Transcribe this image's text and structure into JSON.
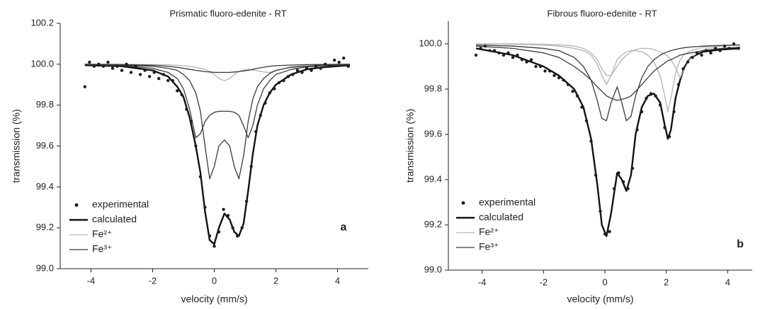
{
  "chart_data": [
    {
      "type": "line",
      "title": "Prismatic fluoro-edenite - RT",
      "xlabel": "velocity (mm/s)",
      "ylabel": "transmission (%)",
      "annotation": "a",
      "xlim": [
        -5,
        5
      ],
      "ylim": [
        99.0,
        100.2
      ],
      "xticks": [
        -4,
        -2,
        0,
        2,
        4
      ],
      "yticks": [
        {
          "value": 99.0,
          "label": "99.0"
        },
        99.2,
        99.4,
        99.6,
        99.8,
        {
          "value": 100.0,
          "label": "100.0"
        },
        100.2
      ],
      "legend": "lower left",
      "series": [
        {
          "name": "experimental",
          "color": "#1e1e1e",
          "mode": "markers",
          "x": [
            -4.2,
            -4.05,
            -3.9,
            -3.75,
            -3.6,
            -3.45,
            -3.3,
            -3.15,
            -3.0,
            -2.85,
            -2.7,
            -2.55,
            -2.4,
            -2.25,
            -2.1,
            -1.95,
            -1.8,
            -1.65,
            -1.5,
            -1.35,
            -1.2,
            -1.05,
            -0.9,
            -0.75,
            -0.6,
            -0.45,
            -0.3,
            -0.15,
            0.0,
            0.15,
            0.3,
            0.45,
            0.6,
            0.75,
            0.9,
            1.05,
            1.2,
            1.35,
            1.5,
            1.65,
            1.8,
            1.95,
            2.1,
            2.25,
            2.4,
            2.55,
            2.7,
            2.85,
            3.0,
            3.15,
            3.3,
            3.45,
            3.6,
            3.75,
            3.9,
            4.05,
            4.2,
            4.35
          ],
          "values": [
            99.89,
            100.01,
            99.99,
            100.0,
            99.99,
            100.01,
            99.98,
            99.99,
            99.97,
            100.0,
            99.96,
            99.99,
            99.95,
            99.97,
            99.94,
            99.96,
            99.93,
            99.95,
            99.92,
            99.92,
            99.87,
            99.85,
            99.78,
            99.72,
            99.6,
            99.45,
            99.3,
            99.16,
            99.11,
            99.18,
            99.29,
            99.26,
            99.2,
            99.16,
            99.2,
            99.33,
            99.5,
            99.67,
            99.75,
            99.81,
            99.86,
            99.88,
            99.91,
            99.92,
            99.94,
            99.95,
            99.97,
            99.96,
            99.98,
            99.97,
            99.99,
            99.98,
            100.0,
            99.99,
            100.02,
            100.01,
            100.03,
            99.99
          ]
        },
        {
          "name": "calculated",
          "color": "#111111",
          "mode": "lines",
          "x": [
            -4.2,
            -3,
            -2,
            -1.5,
            -1.2,
            -1,
            -0.8,
            -0.6,
            -0.45,
            -0.3,
            -0.15,
            0,
            0.15,
            0.33,
            0.5,
            0.65,
            0.8,
            0.95,
            1.1,
            1.25,
            1.4,
            1.6,
            1.8,
            2,
            2.5,
            3,
            3.5,
            4.4
          ],
          "values": [
            99.995,
            99.99,
            99.97,
            99.94,
            99.89,
            99.84,
            99.74,
            99.6,
            99.47,
            99.28,
            99.14,
            99.12,
            99.2,
            99.27,
            99.24,
            99.18,
            99.16,
            99.22,
            99.38,
            99.56,
            99.7,
            99.8,
            99.86,
            99.9,
            99.95,
            99.975,
            99.985,
            99.995
          ]
        },
        {
          "name": "Fe²⁺",
          "color": "#b4b4b4",
          "mode": "lines",
          "x": [
            -4.2,
            -3,
            -2,
            -1.5,
            -1.2,
            -1,
            -0.8,
            -0.6,
            -0.45,
            -0.3,
            -0.15,
            0,
            0.15,
            0.33,
            0.5,
            0.65,
            0.8,
            0.95,
            1.1,
            1.25,
            1.4,
            1.6,
            1.8,
            2,
            2.5,
            3,
            3.5,
            4.4
          ],
          "values": [
            100,
            100,
            99.998,
            99.997,
            99.995,
            99.993,
            99.99,
            99.985,
            99.98,
            99.975,
            99.965,
            99.95,
            99.93,
            99.92,
            99.93,
            99.95,
            99.965,
            99.972,
            99.975,
            99.972,
            99.968,
            99.962,
            99.96,
            99.968,
            99.988,
            99.995,
            99.998,
            100
          ]
        },
        {
          "name": "Fe³⁺",
          "color": "#3a3a3a",
          "mode": "lines",
          "x": [
            -4.2,
            -3,
            -2,
            -1.5,
            -1.2,
            -1,
            -0.8,
            -0.6,
            -0.45,
            -0.3,
            -0.15,
            0,
            0.15,
            0.33,
            0.5,
            0.65,
            0.8,
            0.95,
            1.1,
            1.25,
            1.4,
            1.6,
            1.8,
            2,
            2.5,
            3,
            3.5,
            4.4,
            null,
            -4.2,
            -3,
            -2,
            -1.5,
            -1.2,
            -1,
            -0.8,
            -0.6,
            -0.45,
            -0.3,
            -0.15,
            0,
            0.15,
            0.33,
            0.5,
            0.65,
            0.8,
            0.95,
            1.1,
            1.25,
            1.4,
            1.6,
            1.8,
            2,
            2.5,
            3,
            3.5,
            4.4,
            null,
            -4.2,
            -3,
            -2,
            -1.5,
            -1.2,
            -1,
            -0.8,
            -0.6,
            -0.45,
            -0.3,
            -0.15,
            0,
            0.15,
            0.33,
            0.5,
            0.65,
            0.8,
            0.95,
            1.1,
            1.25,
            1.4,
            1.6,
            1.8,
            2,
            2.5,
            3,
            3.5,
            4.4
          ],
          "values": [
            99.998,
            99.996,
            99.99,
            99.98,
            99.97,
            99.95,
            99.92,
            99.86,
            99.77,
            99.6,
            99.44,
            99.5,
            99.6,
            99.63,
            99.6,
            99.5,
            99.44,
            99.55,
            99.72,
            99.83,
            99.89,
            99.93,
            99.955,
            99.97,
            99.985,
            99.99,
            99.995,
            99.998,
            null,
            99.997,
            99.994,
            99.98,
            99.96,
            99.93,
            99.88,
            99.78,
            99.64,
            99.66,
            99.72,
            99.75,
            99.765,
            99.77,
            99.77,
            99.77,
            99.765,
            99.75,
            99.7,
            99.64,
            99.7,
            99.8,
            99.88,
            99.92,
            99.95,
            99.975,
            99.987,
            99.993,
            99.997,
            null,
            100,
            99.998,
            99.995,
            99.99,
            99.985,
            99.98,
            99.975,
            99.97,
            99.967,
            99.964,
            99.962,
            99.96,
            99.96,
            99.96,
            99.96,
            99.962,
            99.964,
            99.967,
            99.97,
            99.975,
            99.98,
            99.985,
            99.99,
            99.993,
            99.996,
            99.998,
            99.999,
            100
          ]
        }
      ]
    },
    {
      "type": "line",
      "title": "Fibrous fluoro-edenite - RT",
      "xlabel": "velocity (mm/s)",
      "ylabel": "transmission (%)",
      "annotation": "b",
      "xlim": [
        -5.1,
        4.8
      ],
      "ylim": [
        99.0,
        100.1
      ],
      "xticks": [
        -4,
        -2,
        0,
        2,
        4
      ],
      "yticks": [
        {
          "value": 99.0,
          "label": "99.0"
        },
        99.2,
        99.4,
        99.6,
        99.8,
        {
          "value": 100.0,
          "label": "100.0"
        }
      ],
      "legend": "lower left",
      "series": [
        {
          "name": "experimental",
          "color": "#1e1e1e",
          "mode": "markers",
          "x": [
            -4.2,
            -4.05,
            -3.9,
            -3.75,
            -3.6,
            -3.45,
            -3.3,
            -3.15,
            -3.0,
            -2.85,
            -2.7,
            -2.55,
            -2.4,
            -2.25,
            -2.1,
            -1.95,
            -1.8,
            -1.65,
            -1.5,
            -1.35,
            -1.2,
            -1.05,
            -0.9,
            -0.75,
            -0.6,
            -0.45,
            -0.3,
            -0.15,
            0.0,
            0.15,
            0.3,
            0.45,
            0.6,
            0.75,
            0.9,
            1.05,
            1.2,
            1.35,
            1.5,
            1.65,
            1.8,
            1.95,
            2.1,
            2.25,
            2.4,
            2.55,
            2.7,
            2.85,
            3.0,
            3.15,
            3.3,
            3.45,
            3.6,
            3.75,
            3.9,
            4.05,
            4.2,
            4.35
          ],
          "values": [
            99.95,
            99.98,
            99.99,
            99.97,
            99.97,
            99.96,
            99.95,
            99.96,
            99.94,
            99.95,
            99.93,
            99.92,
            99.93,
            99.9,
            99.9,
            99.88,
            99.88,
            99.86,
            99.85,
            99.84,
            99.82,
            99.79,
            99.77,
            99.72,
            99.66,
            99.57,
            99.42,
            99.26,
            99.16,
            99.17,
            99.36,
            99.43,
            99.39,
            99.36,
            99.45,
            99.62,
            99.7,
            99.76,
            99.78,
            99.77,
            99.73,
            99.63,
            99.59,
            99.7,
            99.82,
            99.89,
            99.92,
            99.94,
            99.96,
            99.95,
            99.97,
            99.96,
            99.98,
            99.97,
            99.99,
            99.98,
            100.0,
            99.98
          ]
        },
        {
          "name": "calculated",
          "color": "#111111",
          "mode": "lines",
          "x": [
            -4.2,
            -3,
            -2,
            -1.5,
            -1,
            -0.7,
            -0.45,
            -0.25,
            -0.1,
            0.05,
            0.2,
            0.4,
            0.55,
            0.7,
            0.85,
            1,
            1.2,
            1.4,
            1.6,
            1.8,
            1.95,
            2.05,
            2.15,
            2.3,
            2.45,
            2.6,
            2.8,
            3.2,
            3.8,
            4.4
          ],
          "values": [
            99.98,
            99.95,
            99.9,
            99.86,
            99.8,
            99.72,
            99.58,
            99.38,
            99.2,
            99.15,
            99.25,
            99.43,
            99.4,
            99.35,
            99.42,
            99.6,
            99.72,
            99.77,
            99.78,
            99.74,
            99.64,
            99.58,
            99.62,
            99.76,
            99.84,
            99.9,
            99.94,
            99.965,
            99.975,
            99.98
          ]
        },
        {
          "name": "Fe²⁺",
          "color": "#b4b4b4",
          "mode": "lines",
          "x": [
            -4.2,
            -3,
            -2,
            -1.5,
            -1,
            -0.7,
            -0.45,
            -0.25,
            -0.1,
            0.05,
            0.2,
            0.4,
            0.55,
            0.7,
            0.85,
            1,
            1.2,
            1.4,
            1.6,
            1.8,
            1.95,
            2.05,
            2.15,
            2.3,
            2.45,
            2.6,
            2.8,
            3.2,
            3.8,
            4.4,
            null,
            -4.2,
            -3,
            -2,
            -1.5,
            -1,
            -0.7,
            -0.45,
            -0.25,
            -0.1,
            0.05,
            0.2,
            0.4,
            0.55,
            0.7,
            0.85,
            1,
            1.2,
            1.4,
            1.6,
            1.8,
            1.95,
            2.05,
            2.15,
            2.3,
            2.45,
            2.6,
            2.8,
            3.2,
            3.8,
            4.4
          ],
          "values": [
            100,
            99.998,
            99.995,
            99.99,
            99.98,
            99.97,
            99.95,
            99.91,
            99.86,
            99.82,
            99.86,
            99.93,
            99.95,
            99.965,
            99.97,
            99.97,
            99.965,
            99.95,
            99.92,
            99.86,
            99.77,
            99.7,
            99.76,
            99.87,
            99.93,
            99.955,
            99.97,
            99.985,
            99.993,
            99.996,
            null,
            100,
            100,
            99.998,
            99.996,
            99.99,
            99.98,
            99.96,
            99.93,
            99.89,
            99.86,
            99.86,
            99.9,
            99.93,
            99.95,
            99.965,
            99.975,
            99.98,
            99.98,
            99.975,
            99.965,
            99.955,
            99.945,
            99.93,
            99.895,
            99.85,
            99.89,
            99.94,
            99.975,
            99.99,
            99.995
          ]
        },
        {
          "name": "Fe³⁺",
          "color": "#3a3a3a",
          "mode": "lines",
          "x": [
            -4.2,
            -3,
            -2,
            -1.5,
            -1,
            -0.7,
            -0.45,
            -0.25,
            -0.1,
            0.05,
            0.2,
            0.4,
            0.55,
            0.7,
            0.85,
            1,
            1.2,
            1.4,
            1.6,
            1.8,
            1.95,
            2.05,
            2.15,
            2.3,
            2.45,
            2.6,
            2.8,
            3.2,
            3.8,
            4.4,
            null,
            -4.2,
            -3,
            -2,
            -1.5,
            -1,
            -0.7,
            -0.45,
            -0.25,
            -0.1,
            0.05,
            0.2,
            0.4,
            0.55,
            0.7,
            0.85,
            1,
            1.2,
            1.4,
            1.6,
            1.8,
            1.95,
            2.05,
            2.15,
            2.3,
            2.45,
            2.6,
            2.8,
            3.2,
            3.8,
            4.4
          ],
          "values": [
            99.995,
            99.99,
            99.98,
            99.97,
            99.94,
            99.9,
            99.84,
            99.75,
            99.67,
            99.66,
            99.74,
            99.81,
            99.74,
            99.66,
            99.68,
            99.77,
            99.85,
            99.9,
            99.93,
            99.95,
            99.96,
            99.965,
            99.97,
            99.975,
            99.98,
            99.983,
            99.986,
            99.99,
            99.993,
            99.995,
            null,
            99.99,
            99.98,
            99.96,
            99.94,
            99.9,
            99.87,
            99.84,
            99.81,
            99.79,
            99.77,
            99.76,
            99.75,
            99.755,
            99.76,
            99.77,
            99.79,
            99.82,
            99.85,
            99.88,
            99.9,
            99.915,
            99.925,
            99.93,
            99.94,
            99.95,
            99.955,
            99.96,
            99.97,
            99.98,
            99.985
          ]
        }
      ]
    }
  ]
}
